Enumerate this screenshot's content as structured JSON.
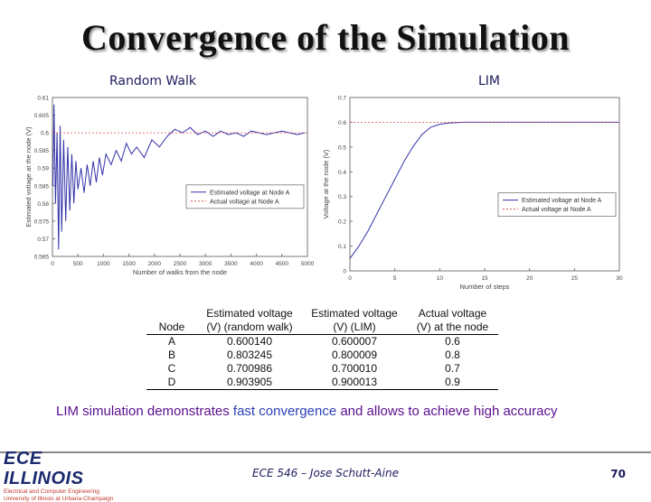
{
  "slide": {
    "title": "Convergence of the Simulation",
    "left_subtitle": "Random Walk",
    "right_subtitle": "LIM",
    "message_parts": [
      "LIM simulation demonstrates ",
      "fast convergence",
      " and allows to achieve high accuracy"
    ],
    "footer": "ECE 546 – Jose Schutt-Aine",
    "page_number": "70",
    "logo_text": "ECE ILLINOIS",
    "logo_line1": "Electrical and Computer Engineering",
    "logo_line2": "University of Illinois at Urbana-Champaign"
  },
  "table": {
    "headers": [
      "Node",
      "Estimated voltage (V) (random walk)",
      "Estimated voltage (V) (LIM)",
      "Actual voltage (V) at the node"
    ],
    "rows": [
      [
        "A",
        "0.600140",
        "0.600007",
        "0.6"
      ],
      [
        "B",
        "0.803245",
        "0.800009",
        "0.8"
      ],
      [
        "C",
        "0.700986",
        "0.700010",
        "0.7"
      ],
      [
        "D",
        "0.903905",
        "0.900013",
        "0.9"
      ]
    ]
  },
  "colors": {
    "estimated": "#3333aa",
    "actual": "#d9534f",
    "axis": "#777777",
    "title_shadow": "#9a9a9a",
    "text_accent": "#5a0f8c",
    "highlight": "#2a3fb5"
  },
  "chart_data": [
    {
      "type": "line",
      "xlabel": "Number of walks from the node",
      "ylabel": "Estimated voltage at the node (V)",
      "xlim": [
        0,
        5000
      ],
      "ylim": [
        0.565,
        0.61
      ],
      "xticks": [
        "0",
        "500",
        "1000",
        "1500",
        "2000",
        "2500",
        "3000",
        "3500",
        "4000",
        "4500",
        "5000"
      ],
      "yticks": [
        "0.565",
        "0.57",
        "0.575",
        "0.58",
        "0.585",
        "0.59",
        "0.595",
        "0.6",
        "0.605",
        "0.61"
      ],
      "legend_position": "right",
      "grid": false,
      "series": [
        {
          "name": "Estimated voltage at Node A",
          "style": "solid",
          "x": [
            10,
            30,
            60,
            90,
            120,
            150,
            180,
            220,
            260,
            300,
            340,
            380,
            420,
            460,
            500,
            560,
            620,
            680,
            740,
            800,
            860,
            920,
            980,
            1050,
            1150,
            1250,
            1350,
            1450,
            1550,
            1650,
            1800,
            1950,
            2100,
            2250,
            2400,
            2550,
            2700,
            2850,
            3000,
            3150,
            3300,
            3450,
            3600,
            3750,
            3900,
            4050,
            4200,
            4350,
            4500,
            4650,
            4800,
            4950
          ],
          "values": [
            0.585,
            0.608,
            0.58,
            0.6,
            0.567,
            0.602,
            0.572,
            0.598,
            0.575,
            0.596,
            0.578,
            0.594,
            0.58,
            0.592,
            0.584,
            0.59,
            0.583,
            0.591,
            0.585,
            0.592,
            0.586,
            0.593,
            0.588,
            0.594,
            0.591,
            0.595,
            0.592,
            0.597,
            0.594,
            0.596,
            0.593,
            0.598,
            0.596,
            0.599,
            0.601,
            0.6,
            0.6015,
            0.5995,
            0.6005,
            0.599,
            0.6005,
            0.5995,
            0.6,
            0.599,
            0.6005,
            0.6,
            0.5995,
            0.6,
            0.6005,
            0.6,
            0.5995,
            0.6
          ]
        },
        {
          "name": "Actual voltage at Node A",
          "style": "dashed",
          "x": [
            0,
            5000
          ],
          "values": [
            0.6,
            0.6
          ]
        }
      ]
    },
    {
      "type": "line",
      "xlabel": "Number of steps",
      "ylabel": "Voltage at the node (V)",
      "xlim": [
        0,
        30
      ],
      "ylim": [
        0,
        0.7
      ],
      "xticks": [
        "0",
        "5",
        "10",
        "15",
        "20",
        "25",
        "30"
      ],
      "yticks": [
        "0",
        "0.1",
        "0.2",
        "0.3",
        "0.4",
        "0.5",
        "0.6",
        "0.7"
      ],
      "legend_position": "right",
      "grid": false,
      "series": [
        {
          "name": "Estimated voltage at Node A",
          "style": "solid",
          "x": [
            0,
            1,
            2,
            3,
            4,
            5,
            6,
            7,
            8,
            9,
            10,
            11,
            12,
            13,
            14,
            15,
            20,
            25,
            30
          ],
          "values": [
            0.05,
            0.1,
            0.16,
            0.23,
            0.3,
            0.37,
            0.44,
            0.5,
            0.55,
            0.58,
            0.592,
            0.597,
            0.599,
            0.6,
            0.6,
            0.6,
            0.6,
            0.6,
            0.6
          ]
        },
        {
          "name": "Actual voltage at Node A",
          "style": "dashed",
          "x": [
            0,
            30
          ],
          "values": [
            0.6,
            0.6
          ]
        }
      ]
    }
  ]
}
